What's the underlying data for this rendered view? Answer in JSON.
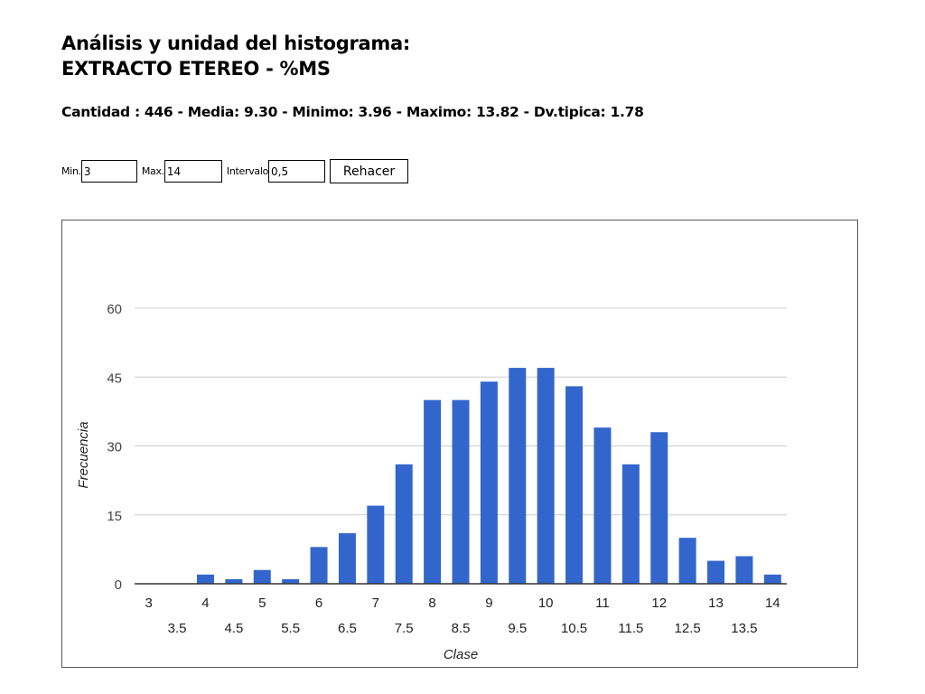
{
  "header": {
    "title_line1": "Análisis y unidad del histograma:",
    "title_line2": "EXTRACTO ETEREO - %MS"
  },
  "stats_line": "Cantidad : 446 - Media: 9.30 - Minimo: 3.96 - Maximo: 13.82 - Dv.tipica: 1.78",
  "controls": {
    "min_label": "Min.",
    "min_value": "3",
    "max_label": "Max.",
    "max_value": "14",
    "interval_label": "Intervalo",
    "interval_value": "0,5",
    "redo_button": "Rehacer"
  },
  "colors": {
    "bar": "#3366cc",
    "grid": "#cccccc",
    "axis": "#333333"
  },
  "chart_data": {
    "type": "bar",
    "xlabel": "Clase",
    "ylabel": "Frecuencia",
    "ylim": [
      0,
      60
    ],
    "yticks": [
      0,
      15,
      30,
      45,
      60
    ],
    "categories": [
      "3",
      "3.5",
      "4",
      "4.5",
      "5",
      "5.5",
      "6",
      "6.5",
      "7",
      "7.5",
      "8",
      "8.5",
      "9",
      "9.5",
      "10",
      "10.5",
      "11",
      "11.5",
      "12",
      "12.5",
      "13",
      "13.5",
      "14"
    ],
    "values": [
      0,
      0,
      2,
      1,
      3,
      1,
      8,
      11,
      17,
      26,
      40,
      40,
      44,
      47,
      47,
      43,
      34,
      26,
      33,
      10,
      5,
      6,
      2
    ],
    "grid": true,
    "legend": "none"
  }
}
